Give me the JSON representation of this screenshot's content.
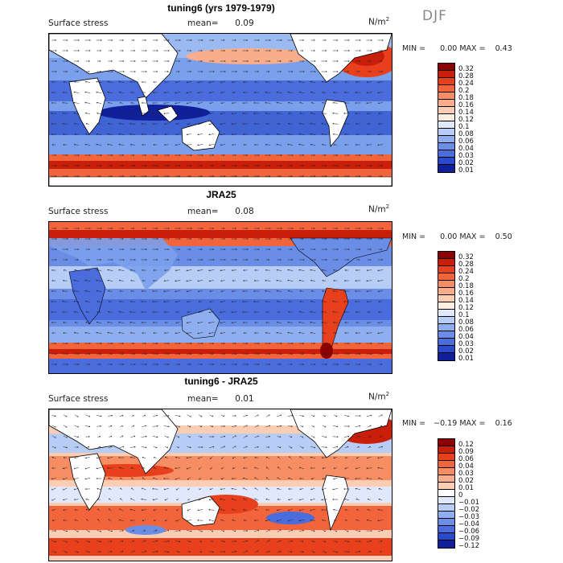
{
  "season": "DJF",
  "units_base": "N/m",
  "units_exp": "2",
  "panels": [
    {
      "title": "tuning6 (yrs 1979-1979)",
      "field": "Surface stress",
      "mean_label": "mean=",
      "mean_value": "0.09",
      "min_label": "MIN =",
      "min_value": "0.00",
      "max_label": "MAX =",
      "max_value": "0.43",
      "levels": [
        "0.32",
        "0.28",
        "0.24",
        "0.2",
        "0.18",
        "0.16",
        "0.14",
        "0.12",
        "0.1",
        "0.08",
        "0.06",
        "0.04",
        "0.03",
        "0.02",
        "0.01"
      ],
      "colors": [
        "#8b0000",
        "#c81e0a",
        "#e8401c",
        "#f2653c",
        "#f78d63",
        "#f9ad8a",
        "#fbcdb3",
        "#fdeee2",
        "#dfe9fb",
        "#b7cdf6",
        "#8faeef",
        "#6a8de6",
        "#4a6cdc",
        "#2a4acc",
        "#10209a"
      ]
    },
    {
      "title": "JRA25",
      "field": "Surface stress",
      "mean_label": "mean=",
      "mean_value": "0.08",
      "min_label": "MIN =",
      "min_value": "0.00",
      "max_label": "MAX =",
      "max_value": "0.50",
      "levels": [
        "0.32",
        "0.28",
        "0.24",
        "0.2",
        "0.18",
        "0.16",
        "0.14",
        "0.12",
        "0.1",
        "0.08",
        "0.06",
        "0.04",
        "0.03",
        "0.02",
        "0.01"
      ],
      "colors": [
        "#8b0000",
        "#c81e0a",
        "#e8401c",
        "#f2653c",
        "#f78d63",
        "#f9ad8a",
        "#fbcdb3",
        "#fdeee2",
        "#dfe9fb",
        "#b7cdf6",
        "#8faeef",
        "#6a8de6",
        "#4a6cdc",
        "#2a4acc",
        "#10209a"
      ]
    },
    {
      "title": "tuning6 - JRA25",
      "field": "Surface stress",
      "mean_label": "mean=",
      "mean_value": "0.01",
      "min_label": "MIN =",
      "min_value": "−0.19",
      "max_label": "MAX =",
      "max_value": "0.16",
      "levels": [
        "0.12",
        "0.09",
        "0.06",
        "0.04",
        "0.03",
        "0.02",
        "0.01",
        "0",
        "−0.01",
        "−0.02",
        "−0.03",
        "−0.04",
        "−0.06",
        "−0.09",
        "−0.12"
      ],
      "colors": [
        "#8b0000",
        "#c81e0a",
        "#e8401c",
        "#f2653c",
        "#f78d63",
        "#f9ad8a",
        "#fbcdb3",
        "#ffffff",
        "#dfe9fb",
        "#b7cdf6",
        "#8faeef",
        "#6a8de6",
        "#4a6cdc",
        "#2a4acc",
        "#10209a"
      ]
    }
  ]
}
